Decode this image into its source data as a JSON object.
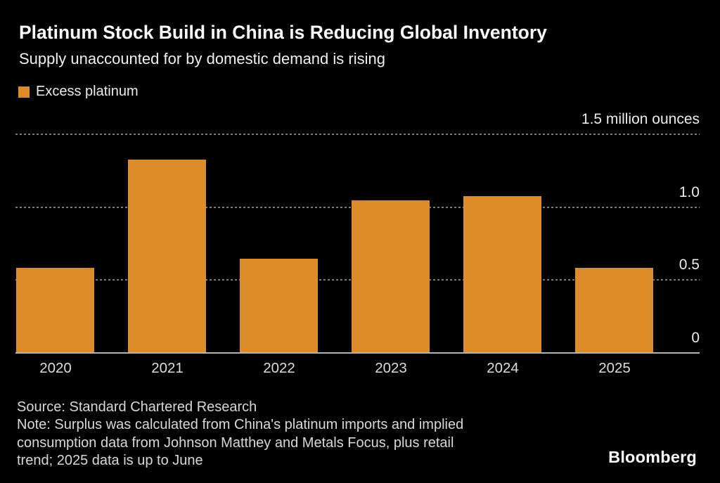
{
  "header": {
    "title": "Platinum Stock Build in China is Reducing Global Inventory",
    "subtitle": "Supply unaccounted for by domestic demand is rising"
  },
  "legend": {
    "label": "Excess platinum",
    "swatch_color": "#DC8C28"
  },
  "chart_data": {
    "type": "bar",
    "categories": [
      "2020",
      "2021",
      "2022",
      "2023",
      "2024",
      "2025"
    ],
    "values": [
      0.58,
      1.32,
      0.64,
      1.04,
      1.07,
      0.58
    ],
    "title": "Platinum Stock Build in China is Reducing Global Inventory",
    "xlabel": "",
    "ylabel": "million ounces",
    "ylim": [
      0,
      1.5
    ],
    "y_ticks": [
      {
        "value": 1.5,
        "label": "1.5 million ounces"
      },
      {
        "value": 1.0,
        "label": "1.0"
      },
      {
        "value": 0.5,
        "label": "0.5"
      },
      {
        "value": 0,
        "label": "0"
      }
    ],
    "bar_color": "#DC8C28",
    "grid": "horizontal-dotted",
    "legend_position": "top-left",
    "axis_side": "right"
  },
  "footer": {
    "lines": [
      "Source: Standard Chartered Research",
      "Note: Surplus was calculated from China's platinum imports and implied",
      "consumption data from Johnson Matthey and Metals Focus, plus retail",
      "trend; 2025 data is up to June"
    ],
    "brand": "Bloomberg"
  }
}
